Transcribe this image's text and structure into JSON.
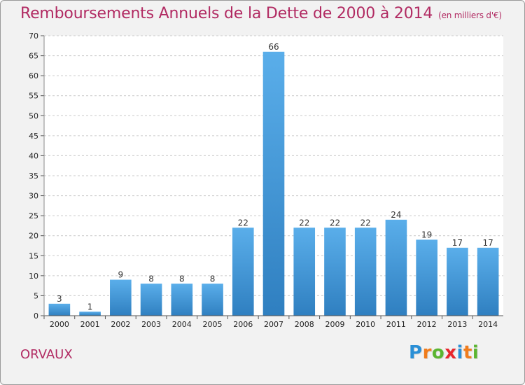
{
  "header": {
    "title": "Remboursements Annuels de la Dette de 2000 à 2014",
    "subtitle": "(en milliers d'€)"
  },
  "footer": {
    "place": "ORVAUX",
    "logo_letters": [
      {
        "char": "P",
        "color": "#2a8fd6"
      },
      {
        "char": "r",
        "color": "#f07c1c"
      },
      {
        "char": "o",
        "color": "#5bb531"
      },
      {
        "char": "x",
        "color": "#e8262c"
      },
      {
        "char": "i",
        "color": "#2a8fd6"
      },
      {
        "char": "t",
        "color": "#f07c1c"
      },
      {
        "char": "i",
        "color": "#5bb531"
      }
    ]
  },
  "chart_data": {
    "type": "bar",
    "title": "Remboursements Annuels de la Dette de 2000 à 2014",
    "subtitle": "(en milliers d'€)",
    "categories": [
      "2000",
      "2001",
      "2002",
      "2003",
      "2004",
      "2005",
      "2006",
      "2007",
      "2008",
      "2009",
      "2010",
      "2011",
      "2012",
      "2013",
      "2014"
    ],
    "values": [
      3,
      1,
      9,
      8,
      8,
      8,
      22,
      66,
      22,
      22,
      22,
      24,
      19,
      17,
      17
    ],
    "ylim": [
      0,
      70
    ],
    "yticks": [
      0,
      5,
      10,
      15,
      20,
      25,
      30,
      35,
      40,
      45,
      50,
      55,
      60,
      65,
      70
    ],
    "grid": "horizontal dashed",
    "bar_color_top": "#5aaeea",
    "bar_color_bottom": "#2f7fc0"
  }
}
